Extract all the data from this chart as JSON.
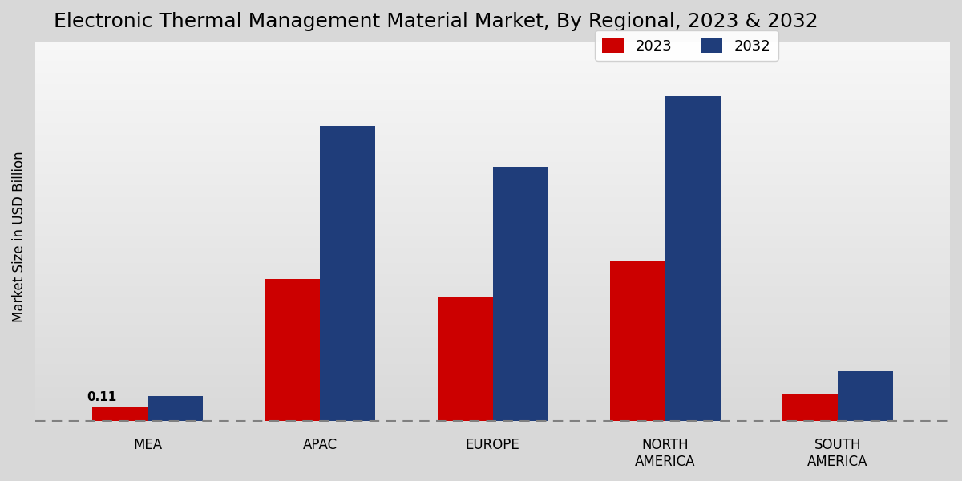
{
  "title": "Electronic Thermal Management Material Market, By Regional, 2023 & 2032",
  "ylabel": "Market Size in USD Billion",
  "categories": [
    "MEA",
    "APAC",
    "EUROPE",
    "NORTH\nAMERICA",
    "SOUTH\nAMERICA"
  ],
  "values_2023": [
    0.11,
    1.2,
    1.05,
    1.35,
    0.22
  ],
  "values_2032": [
    0.21,
    2.5,
    2.15,
    2.75,
    0.42
  ],
  "color_2023": "#cc0000",
  "color_2032": "#1f3d7a",
  "annotation_value": "0.11",
  "dashed_line_y": 0.0,
  "bar_width": 0.32,
  "title_fontsize": 18,
  "label_fontsize": 12,
  "tick_fontsize": 12,
  "legend_fontsize": 13,
  "ylim": [
    -0.08,
    3.2
  ],
  "xlim_left": -0.65,
  "xlim_right": 4.65
}
